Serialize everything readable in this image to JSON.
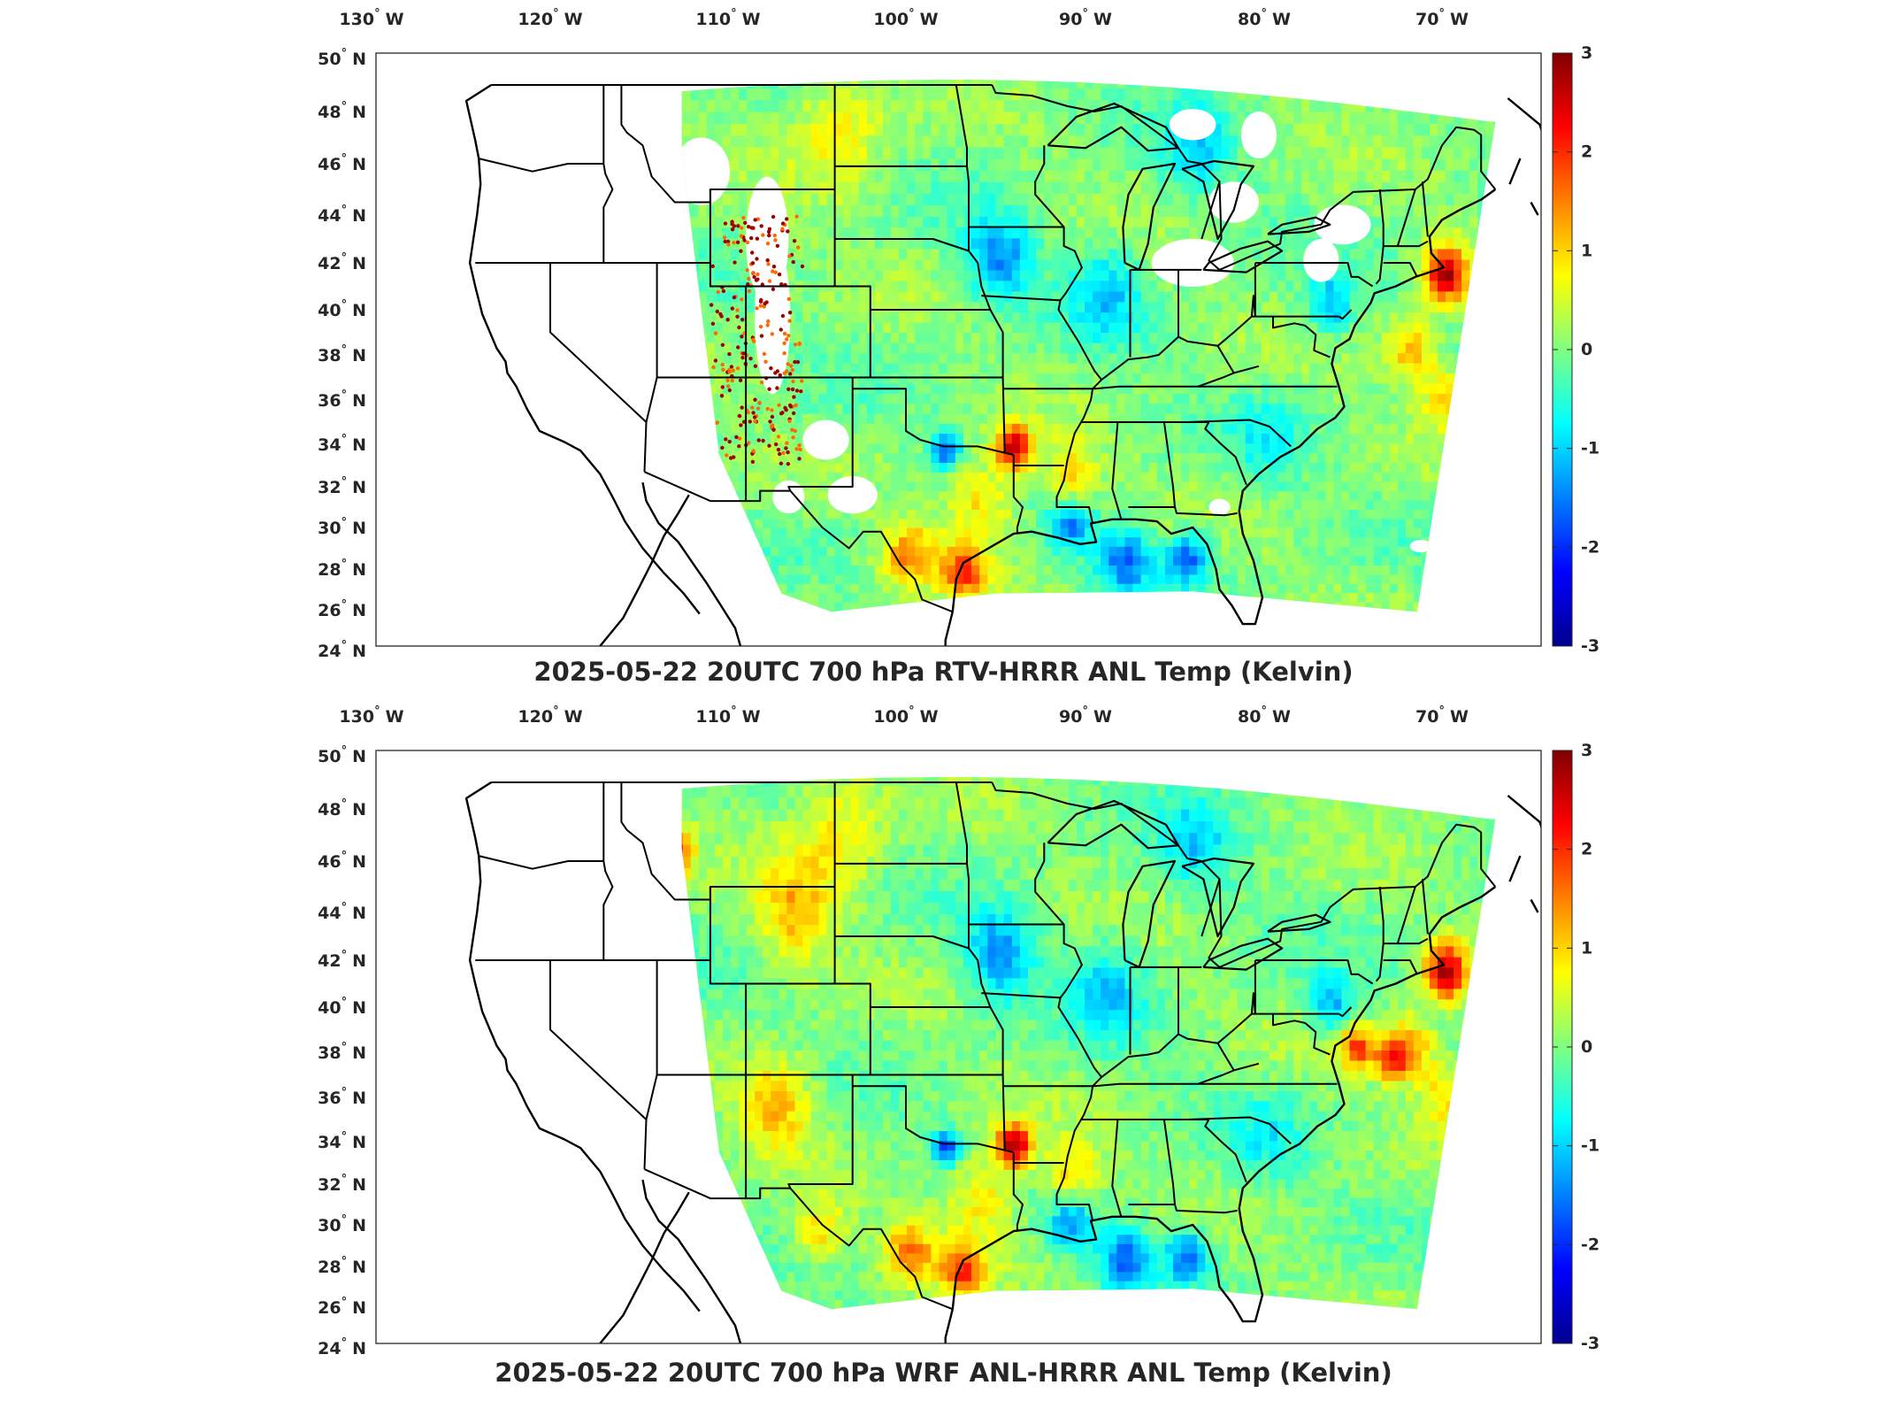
{
  "panels": [
    {
      "title": "2025-05-22 20UTC 700 hPa RTV-HRRR ANL Temp (Kelvin)",
      "has_data_gaps": true
    },
    {
      "title": "2025-05-22 20UTC 700 hPa WRF ANL-HRRR ANL Temp (Kelvin)",
      "has_data_gaps": false
    }
  ],
  "axes": {
    "lon_range": [
      -131,
      -66
    ],
    "lat_range": [
      24,
      50
    ],
    "lon_ticks": [
      {
        "value": -130,
        "deg": "130",
        "dir": "W"
      },
      {
        "value": -120,
        "deg": "120",
        "dir": "W"
      },
      {
        "value": -110,
        "deg": "110",
        "dir": "W"
      },
      {
        "value": -100,
        "deg": "100",
        "dir": "W"
      },
      {
        "value": -90,
        "deg": "90",
        "dir": "W"
      },
      {
        "value": -80,
        "deg": "80",
        "dir": "W"
      },
      {
        "value": -70,
        "deg": "70",
        "dir": "W"
      }
    ],
    "lat_ticks": [
      {
        "value": 50,
        "deg": "50",
        "dir": "N"
      },
      {
        "value": 48,
        "deg": "48",
        "dir": "N"
      },
      {
        "value": 46,
        "deg": "46",
        "dir": "N"
      },
      {
        "value": 44,
        "deg": "44",
        "dir": "N"
      },
      {
        "value": 42,
        "deg": "42",
        "dir": "N"
      },
      {
        "value": 40,
        "deg": "40",
        "dir": "N"
      },
      {
        "value": 38,
        "deg": "38",
        "dir": "N"
      },
      {
        "value": 36,
        "deg": "36",
        "dir": "N"
      },
      {
        "value": 34,
        "deg": "34",
        "dir": "N"
      },
      {
        "value": 32,
        "deg": "32",
        "dir": "N"
      },
      {
        "value": 30,
        "deg": "30",
        "dir": "N"
      },
      {
        "value": 28,
        "deg": "28",
        "dir": "N"
      },
      {
        "value": 26,
        "deg": "26",
        "dir": "N"
      },
      {
        "value": 24,
        "deg": "24",
        "dir": "N"
      }
    ]
  },
  "colorbar": {
    "range": [
      -3,
      3
    ],
    "ticks": [
      "3",
      "2",
      "1",
      "0",
      "-1",
      "-2",
      "-3"
    ],
    "colormap": "jet",
    "colors": [
      "#00008f",
      "#0000ff",
      "#0080ff",
      "#00ffff",
      "#80ff80",
      "#ffff00",
      "#ff8000",
      "#ff0000",
      "#800000"
    ]
  },
  "map_colors": {
    "background": "#ffffff",
    "border": "#000000",
    "field_base": "#66e6b0"
  }
}
